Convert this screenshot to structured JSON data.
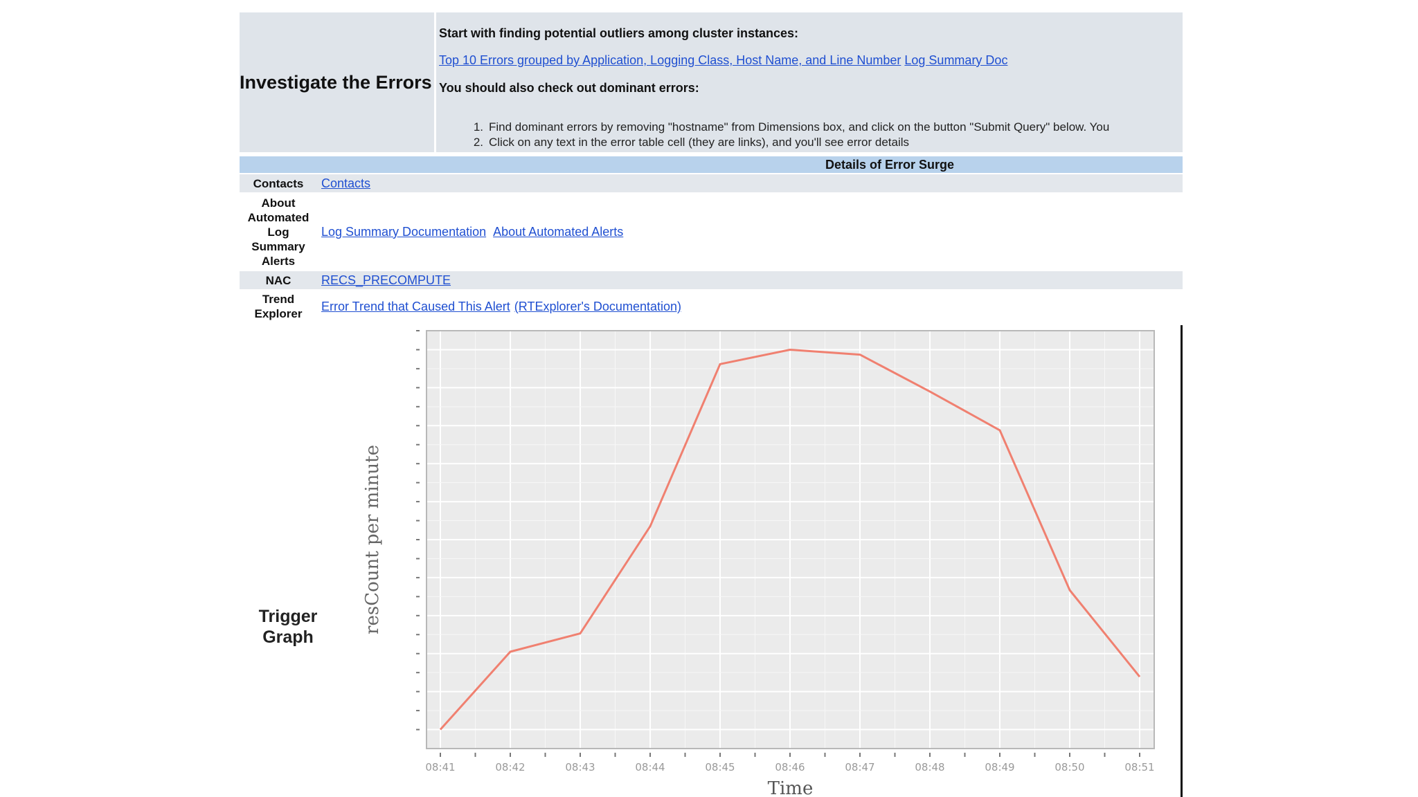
{
  "investigate": {
    "title": "Investigate the Errors",
    "intro": "Start with finding potential outliers among cluster instances:",
    "link_top10": "Top 10 Errors grouped by Application, Logging Class, Host Name, and Line Number",
    "link_log_doc": "Log Summary Doc",
    "dominant_heading": "You should also check out dominant errors:",
    "steps": [
      {
        "num": "1.",
        "text": "Find dominant errors by removing \"hostname\" from Dimensions box, and click on the button \"Submit Query\" below. You"
      },
      {
        "num": "2.",
        "text": "Click on any text in the error table cell (they are links), and you'll see error details"
      }
    ]
  },
  "details": {
    "heading": "Details of Error Surge",
    "contacts_label": "Contacts",
    "contacts_link": "Contacts",
    "about_label": "About Automated Log Summary Alerts",
    "about_link_1": "Log Summary Documentation",
    "about_link_2": "About Automated Alerts",
    "nac_label": "NAC",
    "nac_link": "RECS_PRECOMPUTE",
    "trend_label": "Trend Explorer",
    "trend_link_1": "Error Trend that Caused This Alert",
    "trend_link_2": "(RTExplorer's Documentation)"
  },
  "trigger": {
    "label": "Trigger Graph"
  },
  "chart_data": {
    "type": "line",
    "xlabel": "Time",
    "ylabel": "resCount per minute",
    "x": [
      "08:41",
      "08:42",
      "08:43",
      "08:44",
      "08:45",
      "08:46",
      "08:47",
      "08:48",
      "08:49",
      "08:50",
      "08:51"
    ],
    "series": [
      {
        "values": [
          0.0,
          0.205,
          0.253,
          0.535,
          0.962,
          1.0,
          0.987,
          0.89,
          0.788,
          0.367,
          0.139
        ],
        "color": "#f08070"
      }
    ],
    "ylim": [
      -0.05,
      1.05
    ],
    "grid": true,
    "panel_bg": "#ebebeb"
  }
}
